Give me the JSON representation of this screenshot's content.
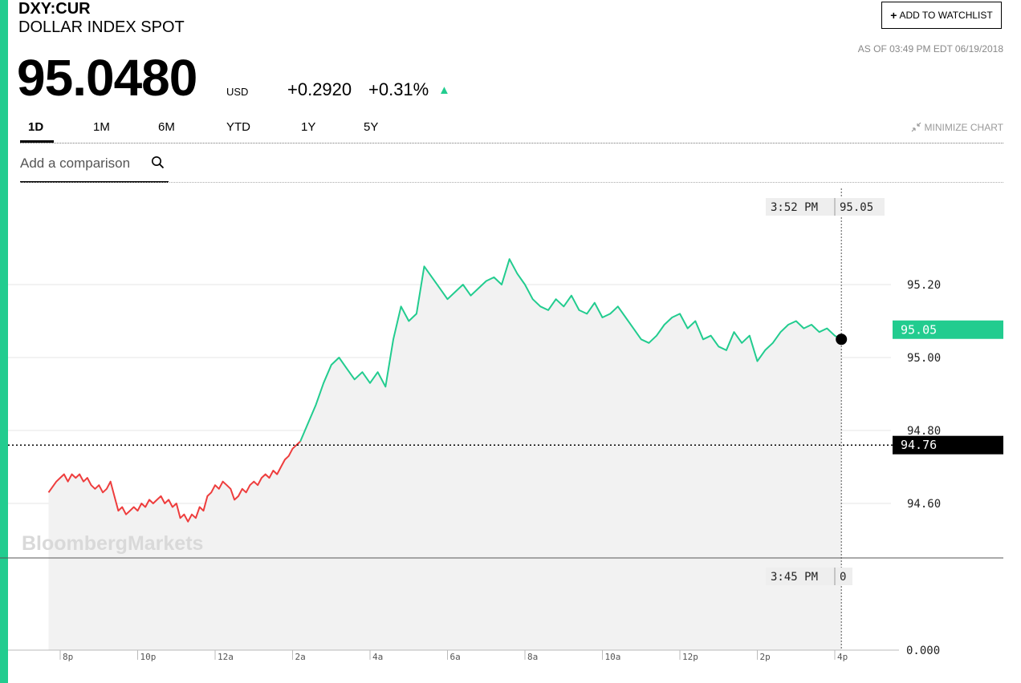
{
  "header": {
    "ticker": "DXY:CUR",
    "name": "DOLLAR INDEX SPOT",
    "price": "95.0480",
    "currency": "USD",
    "change": "+0.2920",
    "change_pct": "+0.31%",
    "direction_icon": "up-triangle-icon",
    "as_of": "AS OF 03:49 PM EDT 06/19/2018",
    "watchlist_label": "ADD TO WATCHLIST"
  },
  "tabs": [
    {
      "label": "1D",
      "active": true
    },
    {
      "label": "1M",
      "active": false
    },
    {
      "label": "6M",
      "active": false
    },
    {
      "label": "YTD",
      "active": false
    },
    {
      "label": "1Y",
      "active": false
    },
    {
      "label": "5Y",
      "active": false
    }
  ],
  "minimize_label": "MINIMIZE CHART",
  "comparison": {
    "placeholder": "Add a comparison"
  },
  "colors": {
    "accent": "#22cc8f",
    "down": "#ee3d3d",
    "up": "#22cc8f",
    "area": "#f2f2f2"
  },
  "chart_data": {
    "type": "line",
    "watermark": "BloombergMarkets",
    "previous_close": 94.76,
    "previous_close_label": "94.76",
    "last_value": 95.05,
    "last_label": "95.05",
    "y_ticks": [
      "95.20",
      "95.00",
      "94.80",
      "94.60"
    ],
    "y_range": [
      94.45,
      95.45
    ],
    "volume_axis_label": "0.000",
    "x_ticks": [
      "8p",
      "10p",
      "12a",
      "2a",
      "4a",
      "6a",
      "8a",
      "10a",
      "12p",
      "2p",
      "4p"
    ],
    "x_range_hours": [
      19.75,
      40.25
    ],
    "crosshair": {
      "time": "3:52 PM",
      "value": "95.05",
      "volume_time": "3:45 PM",
      "volume_value": "0"
    },
    "series": [
      {
        "segment": "below-previous-close",
        "x": [
          19.7,
          19.9,
          20.0,
          20.1,
          20.2,
          20.3,
          20.4,
          20.5,
          20.6,
          20.7,
          20.8,
          20.9,
          21.0,
          21.1,
          21.2,
          21.3,
          21.4,
          21.5,
          21.6,
          21.7,
          21.8,
          21.9,
          22.0,
          22.1,
          22.2,
          22.3,
          22.4,
          22.5,
          22.6,
          22.7,
          22.8,
          22.9,
          23.0,
          23.1,
          23.2,
          23.3,
          23.4,
          23.5,
          23.6,
          23.7,
          23.8,
          23.9,
          24.0,
          24.1,
          24.2,
          24.3,
          24.4,
          24.5,
          24.6,
          24.7,
          24.8,
          24.9,
          25.0,
          25.1,
          25.2,
          25.3,
          25.4,
          25.5,
          25.6,
          25.7,
          25.8,
          25.9,
          26.0,
          26.1,
          26.2
        ],
        "y": [
          94.63,
          94.66,
          94.67,
          94.68,
          94.66,
          94.68,
          94.67,
          94.68,
          94.66,
          94.67,
          94.65,
          94.64,
          94.65,
          94.63,
          94.64,
          94.66,
          94.62,
          94.58,
          94.59,
          94.57,
          94.58,
          94.59,
          94.58,
          94.6,
          94.59,
          94.61,
          94.6,
          94.61,
          94.62,
          94.6,
          94.61,
          94.59,
          94.6,
          94.56,
          94.57,
          94.55,
          94.57,
          94.56,
          94.59,
          94.58,
          94.62,
          94.63,
          94.65,
          94.64,
          94.66,
          94.65,
          94.64,
          94.61,
          94.62,
          94.64,
          94.63,
          94.65,
          94.66,
          94.65,
          94.67,
          94.68,
          94.67,
          94.69,
          94.68,
          94.7,
          94.72,
          94.73,
          94.75,
          94.76,
          94.77
        ]
      },
      {
        "segment": "above-previous-close",
        "x": [
          26.2,
          26.4,
          26.6,
          26.8,
          27.0,
          27.2,
          27.4,
          27.6,
          27.8,
          28.0,
          28.2,
          28.4,
          28.6,
          28.8,
          29.0,
          29.2,
          29.4,
          29.6,
          29.8,
          30.0,
          30.2,
          30.4,
          30.6,
          30.8,
          31.0,
          31.2,
          31.4,
          31.6,
          31.8,
          32.0,
          32.2,
          32.4,
          32.6,
          32.8,
          33.0,
          33.2,
          33.4,
          33.6,
          33.8,
          34.0,
          34.2,
          34.4,
          34.6,
          34.8,
          35.0,
          35.2,
          35.4,
          35.6,
          35.8,
          36.0,
          36.2,
          36.4,
          36.6,
          36.8,
          37.0,
          37.2,
          37.4,
          37.6,
          37.8,
          38.0,
          38.2,
          38.4,
          38.6,
          38.8,
          39.0,
          39.2,
          39.4,
          39.6,
          39.8,
          40.0,
          40.17
        ],
        "y": [
          94.77,
          94.82,
          94.87,
          94.93,
          94.98,
          95.0,
          94.97,
          94.94,
          94.96,
          94.93,
          94.96,
          94.92,
          95.05,
          95.14,
          95.1,
          95.12,
          95.25,
          95.22,
          95.19,
          95.16,
          95.18,
          95.2,
          95.17,
          95.19,
          95.21,
          95.22,
          95.2,
          95.27,
          95.23,
          95.2,
          95.16,
          95.14,
          95.13,
          95.16,
          95.14,
          95.17,
          95.13,
          95.12,
          95.15,
          95.11,
          95.12,
          95.14,
          95.11,
          95.08,
          95.05,
          95.04,
          95.06,
          95.09,
          95.11,
          95.12,
          95.08,
          95.1,
          95.05,
          95.06,
          95.03,
          95.02,
          95.07,
          95.04,
          95.06,
          94.99,
          95.02,
          95.04,
          95.07,
          95.09,
          95.1,
          95.08,
          95.09,
          95.07,
          95.08,
          95.06,
          95.05
        ]
      }
    ]
  }
}
